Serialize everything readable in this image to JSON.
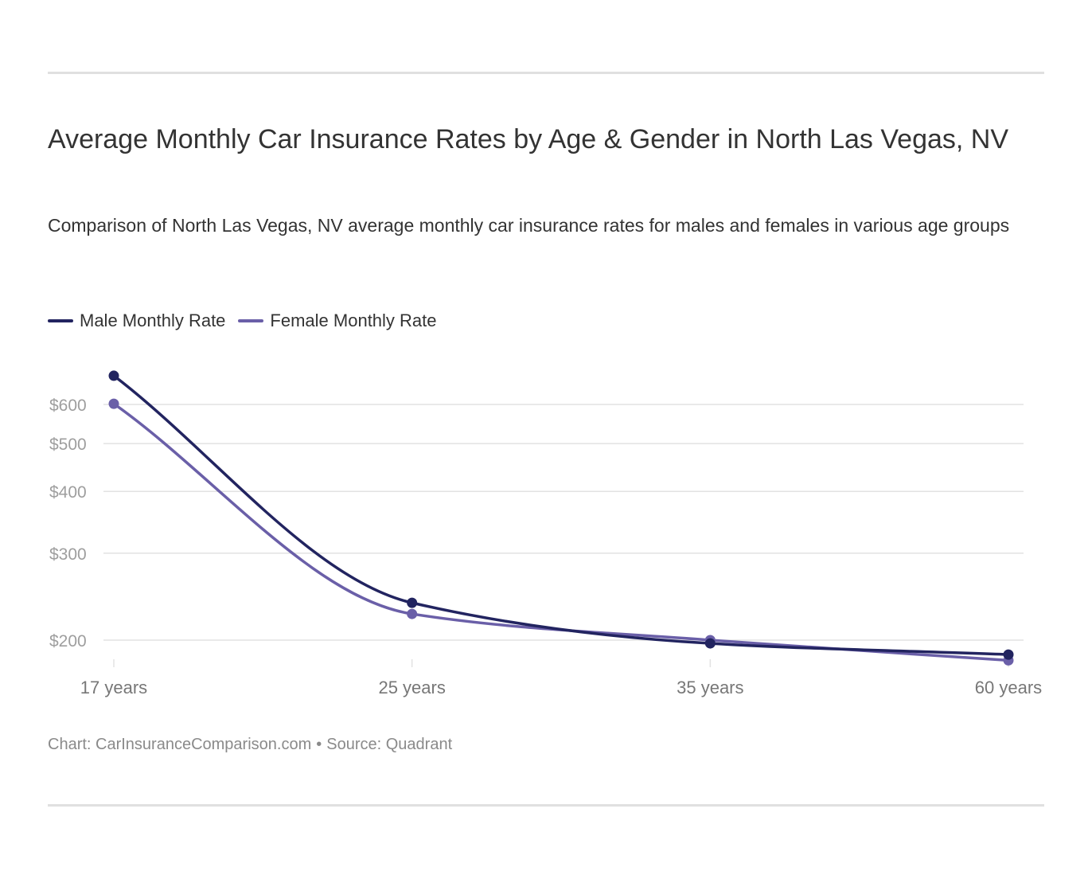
{
  "header": {
    "title": "Average Monthly Car Insurance Rates by Age & Gender in North Las Vegas, NV",
    "subtitle": "Comparison of North Las Vegas, NV average monthly car insurance rates for males and females in various age groups"
  },
  "footer": {
    "chart_credit": "Chart: CarInsuranceComparison.com",
    "separator": "•",
    "source": "Source: Quadrant"
  },
  "colors": {
    "male": "#222460",
    "female": "#6a5fa8",
    "grid": "#e2e2e2",
    "tick_text": "#9e9e9e",
    "category_text": "#777777"
  },
  "chart_data": {
    "type": "line",
    "y_scale": "log",
    "categories": [
      "17 years",
      "25 years",
      "35 years",
      "60 years"
    ],
    "series": [
      {
        "name": "Male Monthly Rate",
        "values": [
          686,
          238,
          197,
          187
        ]
      },
      {
        "name": "Female Monthly Rate",
        "values": [
          602,
          226,
          200,
          182
        ]
      }
    ],
    "y_ticks": [
      200,
      300,
      400,
      500,
      600
    ],
    "y_tick_labels": [
      "$200",
      "$300",
      "$400",
      "$500",
      "$600"
    ],
    "title": "Average Monthly Car Insurance Rates by Age & Gender in North Las Vegas, NV",
    "xlabel": "",
    "ylabel": "",
    "grid": true,
    "legend": "top-left"
  }
}
